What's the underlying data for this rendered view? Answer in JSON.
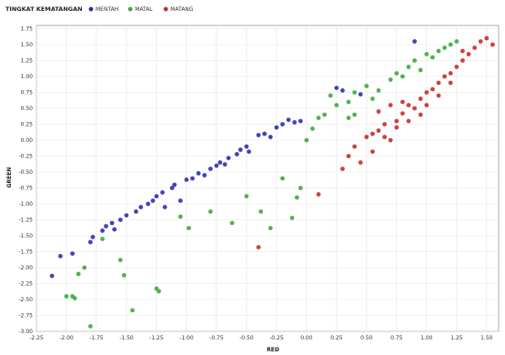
{
  "chart_data": {
    "type": "scatter",
    "title": "",
    "xlabel": "RED",
    "ylabel": "GREEN",
    "xlim": [
      -2.25,
      1.6
    ],
    "ylim": [
      -3.0,
      1.8
    ],
    "x_ticks": [
      "-2.25",
      "-2.00",
      "-1.75",
      "-1.50",
      "-1.25",
      "-1.00",
      "-0.75",
      "-0.50",
      "-0.25",
      "0.00",
      "0.25",
      "0.50",
      "0.75",
      "1.00",
      "1.25",
      "1.50"
    ],
    "x_tick_values": [
      -2.25,
      -2.0,
      -1.75,
      -1.5,
      -1.25,
      -1.0,
      -0.75,
      -0.5,
      -0.25,
      0.0,
      0.25,
      0.5,
      0.75,
      1.0,
      1.25,
      1.5
    ],
    "y_ticks": [
      "1.75",
      "1.50",
      "1.25",
      "1.00",
      "0.75",
      "0.50",
      "0.25",
      "0.00",
      "-0.25",
      "-0.50",
      "-0.75",
      "-1.00",
      "-1.25",
      "-1.50",
      "-1.75",
      "-2.00",
      "-2.25",
      "-2.50",
      "-2.75",
      "-3.00"
    ],
    "y_tick_values": [
      1.75,
      1.5,
      1.25,
      1.0,
      0.75,
      0.5,
      0.25,
      0.0,
      -0.25,
      -0.5,
      -0.75,
      -1.0,
      -1.25,
      -1.5,
      -1.75,
      -2.0,
      -2.25,
      -2.5,
      -2.75,
      -3.0
    ],
    "grid": true,
    "legend": {
      "title": "TINGKAT KEMATANGAN",
      "placement": "top-left"
    },
    "series": [
      {
        "name": "MENTAH",
        "color": "#2d2db0",
        "points": [
          [
            -2.12,
            -2.13
          ],
          [
            -2.05,
            -1.82
          ],
          [
            -1.95,
            -1.78
          ],
          [
            -1.8,
            -1.6
          ],
          [
            -1.78,
            -1.52
          ],
          [
            -1.7,
            -1.42
          ],
          [
            -1.67,
            -1.35
          ],
          [
            -1.62,
            -1.3
          ],
          [
            -1.6,
            -1.4
          ],
          [
            -1.55,
            -1.25
          ],
          [
            -1.5,
            -1.18
          ],
          [
            -1.42,
            -1.12
          ],
          [
            -1.38,
            -1.05
          ],
          [
            -1.32,
            -1.0
          ],
          [
            -1.28,
            -0.95
          ],
          [
            -1.25,
            -0.88
          ],
          [
            -1.2,
            -0.82
          ],
          [
            -1.18,
            -1.05
          ],
          [
            -1.12,
            -0.75
          ],
          [
            -1.1,
            -0.7
          ],
          [
            -1.05,
            -0.95
          ],
          [
            -1.0,
            -0.62
          ],
          [
            -0.95,
            -0.6
          ],
          [
            -0.9,
            -0.52
          ],
          [
            -0.85,
            -0.55
          ],
          [
            -0.8,
            -0.45
          ],
          [
            -0.75,
            -0.4
          ],
          [
            -0.72,
            -0.35
          ],
          [
            -0.68,
            -0.38
          ],
          [
            -0.65,
            -0.28
          ],
          [
            -0.58,
            -0.22
          ],
          [
            -0.55,
            -0.15
          ],
          [
            -0.5,
            -0.1
          ],
          [
            -0.48,
            -0.18
          ],
          [
            -0.4,
            0.08
          ],
          [
            -0.35,
            0.1
          ],
          [
            -0.3,
            0.05
          ],
          [
            -0.25,
            0.2
          ],
          [
            -0.2,
            0.25
          ],
          [
            -0.15,
            0.32
          ],
          [
            -0.1,
            0.28
          ],
          [
            -0.05,
            0.3
          ],
          [
            0.25,
            0.82
          ],
          [
            0.3,
            0.78
          ],
          [
            0.45,
            0.72
          ],
          [
            0.9,
            1.55
          ]
        ]
      },
      {
        "name": "MATAL",
        "color": "#3daa3d",
        "points": [
          [
            -2.0,
            -2.45
          ],
          [
            -1.95,
            -2.45
          ],
          [
            -1.9,
            -2.1
          ],
          [
            -1.85,
            -2.0
          ],
          [
            -1.93,
            -2.48
          ],
          [
            -1.8,
            -2.92
          ],
          [
            -1.7,
            -1.55
          ],
          [
            -1.55,
            -1.88
          ],
          [
            -1.52,
            -2.12
          ],
          [
            -1.45,
            -2.67
          ],
          [
            -1.25,
            -2.33
          ],
          [
            -1.23,
            -2.37
          ],
          [
            -1.05,
            -1.2
          ],
          [
            -0.98,
            -1.38
          ],
          [
            -0.8,
            -1.12
          ],
          [
            -0.62,
            -1.3
          ],
          [
            -0.5,
            -0.88
          ],
          [
            -0.38,
            -1.12
          ],
          [
            -0.3,
            -1.38
          ],
          [
            -0.12,
            -1.22
          ],
          [
            -0.08,
            -0.9
          ],
          [
            -0.05,
            -0.75
          ],
          [
            -0.2,
            -0.6
          ],
          [
            0.0,
            0.0
          ],
          [
            0.05,
            0.18
          ],
          [
            0.1,
            0.35
          ],
          [
            0.15,
            0.4
          ],
          [
            0.25,
            0.55
          ],
          [
            0.2,
            0.7
          ],
          [
            0.35,
            0.6
          ],
          [
            0.4,
            0.75
          ],
          [
            0.5,
            0.85
          ],
          [
            0.55,
            0.65
          ],
          [
            0.6,
            0.78
          ],
          [
            0.7,
            0.95
          ],
          [
            0.75,
            1.05
          ],
          [
            0.8,
            1.0
          ],
          [
            0.85,
            1.15
          ],
          [
            0.9,
            1.25
          ],
          [
            0.95,
            1.1
          ],
          [
            1.0,
            1.35
          ],
          [
            1.05,
            1.3
          ],
          [
            1.1,
            1.4
          ],
          [
            1.15,
            1.45
          ],
          [
            1.2,
            1.5
          ],
          [
            1.25,
            1.55
          ],
          [
            0.4,
            0.4
          ],
          [
            0.35,
            0.35
          ]
        ]
      },
      {
        "name": "MATANG",
        "color": "#c82c2c",
        "points": [
          [
            -0.4,
            -1.68
          ],
          [
            0.1,
            -0.85
          ],
          [
            0.3,
            -0.45
          ],
          [
            0.35,
            -0.25
          ],
          [
            0.4,
            -0.1
          ],
          [
            0.45,
            -0.35
          ],
          [
            0.5,
            0.05
          ],
          [
            0.55,
            -0.18
          ],
          [
            0.6,
            0.15
          ],
          [
            0.65,
            0.25
          ],
          [
            0.7,
            0.0
          ],
          [
            0.75,
            0.3
          ],
          [
            0.8,
            0.42
          ],
          [
            0.85,
            0.55
          ],
          [
            0.9,
            0.5
          ],
          [
            0.95,
            0.65
          ],
          [
            1.0,
            0.75
          ],
          [
            1.05,
            0.8
          ],
          [
            1.1,
            0.9
          ],
          [
            1.15,
            1.0
          ],
          [
            1.2,
            1.05
          ],
          [
            1.25,
            1.15
          ],
          [
            1.3,
            1.25
          ],
          [
            1.35,
            1.35
          ],
          [
            1.4,
            1.45
          ],
          [
            1.45,
            1.55
          ],
          [
            1.5,
            1.6
          ],
          [
            1.55,
            1.5
          ],
          [
            1.3,
            1.4
          ],
          [
            1.1,
            0.7
          ],
          [
            0.95,
            0.4
          ],
          [
            0.85,
            0.3
          ],
          [
            0.75,
            0.2
          ],
          [
            0.65,
            0.05
          ],
          [
            0.55,
            0.1
          ],
          [
            1.0,
            0.55
          ],
          [
            1.2,
            0.9
          ],
          [
            0.6,
            0.45
          ],
          [
            0.7,
            0.55
          ],
          [
            0.8,
            0.6
          ]
        ]
      }
    ]
  }
}
